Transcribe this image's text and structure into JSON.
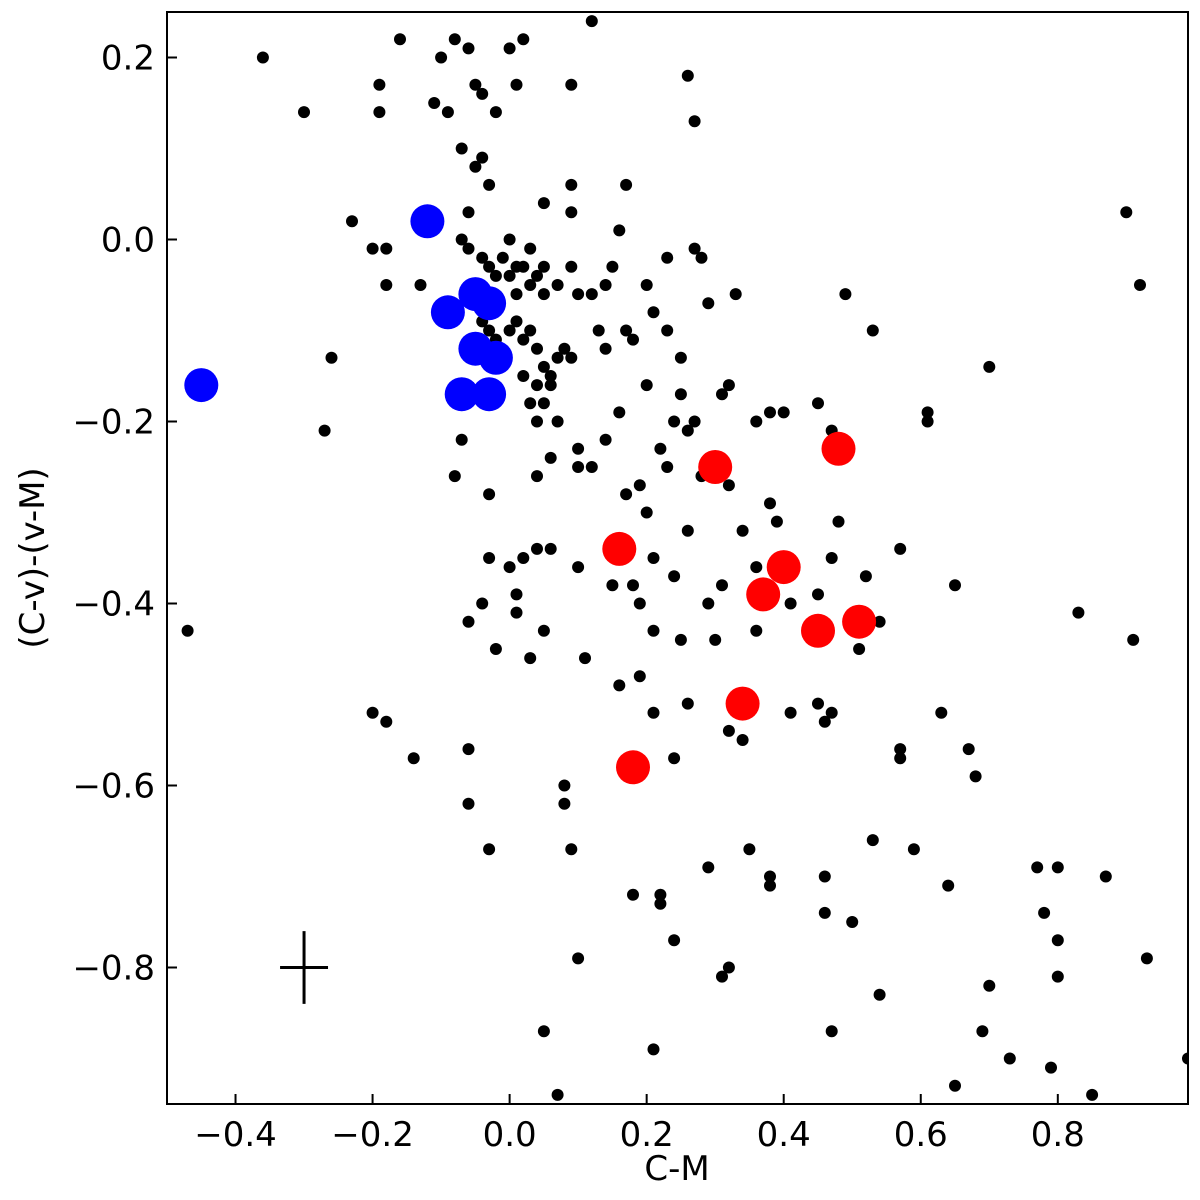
{
  "chart_data": {
    "type": "scatter",
    "title": "",
    "xlabel": "C-M",
    "ylabel": "(C-v)-(v-M)",
    "xlim": [
      -0.5,
      0.99
    ],
    "ylim": [
      -0.95,
      0.25
    ],
    "x_ticks": [
      -0.4,
      -0.2,
      0.0,
      0.2,
      0.4,
      0.6,
      0.8
    ],
    "x_tick_labels": [
      "−0.4",
      "−0.2",
      "0.0",
      "0.2",
      "0.4",
      "0.6",
      "0.8"
    ],
    "y_ticks": [
      0.2,
      0.0,
      -0.2,
      -0.4,
      -0.6,
      -0.8
    ],
    "y_tick_labels": [
      "0.2",
      "0.0",
      "−0.2",
      "−0.4",
      "−0.6",
      "−0.8"
    ],
    "grid": false,
    "legend": "none",
    "error_bar": {
      "x": -0.3,
      "y": -0.8,
      "xerr": 0.035,
      "yerr": 0.04,
      "color": "#000000"
    },
    "series": [
      {
        "color": "#000000",
        "marker": "small-circle",
        "points": [
          [
            -0.36,
            0.2
          ],
          [
            -0.3,
            0.14
          ],
          [
            -0.19,
            0.17
          ],
          [
            -0.19,
            0.14
          ],
          [
            -0.16,
            0.22
          ],
          [
            -0.1,
            0.2
          ],
          [
            -0.11,
            0.15
          ],
          [
            -0.09,
            0.14
          ],
          [
            -0.08,
            0.22
          ],
          [
            -0.06,
            0.21
          ],
          [
            -0.05,
            0.17
          ],
          [
            -0.04,
            0.16
          ],
          [
            -0.02,
            0.14
          ],
          [
            0.0,
            0.21
          ],
          [
            0.01,
            0.17
          ],
          [
            0.02,
            0.22
          ],
          [
            0.09,
            0.17
          ],
          [
            0.12,
            0.24
          ],
          [
            0.26,
            0.18
          ],
          [
            0.27,
            0.13
          ],
          [
            -0.07,
            0.1
          ],
          [
            -0.05,
            0.08
          ],
          [
            -0.04,
            0.09
          ],
          [
            -0.03,
            0.06
          ],
          [
            -0.06,
            0.03
          ],
          [
            0.05,
            0.04
          ],
          [
            0.09,
            0.06
          ],
          [
            0.09,
            0.03
          ],
          [
            0.16,
            0.01
          ],
          [
            0.17,
            0.06
          ],
          [
            -0.23,
            0.02
          ],
          [
            -0.2,
            -0.01
          ],
          [
            -0.18,
            -0.01
          ],
          [
            -0.18,
            -0.05
          ],
          [
            -0.13,
            -0.05
          ],
          [
            -0.07,
            0.0
          ],
          [
            -0.06,
            -0.01
          ],
          [
            -0.04,
            -0.02
          ],
          [
            -0.03,
            -0.03
          ],
          [
            -0.02,
            -0.04
          ],
          [
            -0.01,
            -0.02
          ],
          [
            0.0,
            0.0
          ],
          [
            0.0,
            -0.04
          ],
          [
            0.01,
            -0.03
          ],
          [
            0.01,
            -0.06
          ],
          [
            0.02,
            -0.03
          ],
          [
            0.03,
            -0.01
          ],
          [
            0.03,
            -0.05
          ],
          [
            0.04,
            -0.04
          ],
          [
            0.05,
            -0.03
          ],
          [
            0.05,
            -0.06
          ],
          [
            0.07,
            -0.05
          ],
          [
            0.09,
            -0.03
          ],
          [
            0.1,
            -0.06
          ],
          [
            0.12,
            -0.06
          ],
          [
            0.14,
            -0.05
          ],
          [
            0.15,
            -0.03
          ],
          [
            0.2,
            -0.05
          ],
          [
            0.23,
            -0.02
          ],
          [
            0.27,
            -0.01
          ],
          [
            0.28,
            -0.02
          ],
          [
            0.29,
            -0.07
          ],
          [
            0.33,
            -0.06
          ],
          [
            -0.04,
            -0.09
          ],
          [
            -0.03,
            -0.1
          ],
          [
            -0.02,
            -0.11
          ],
          [
            0.0,
            -0.1
          ],
          [
            0.01,
            -0.09
          ],
          [
            0.02,
            -0.11
          ],
          [
            0.03,
            -0.1
          ],
          [
            0.04,
            -0.12
          ],
          [
            0.05,
            -0.14
          ],
          [
            0.06,
            -0.15
          ],
          [
            0.07,
            -0.13
          ],
          [
            0.08,
            -0.12
          ],
          [
            0.09,
            -0.13
          ],
          [
            0.13,
            -0.1
          ],
          [
            0.14,
            -0.12
          ],
          [
            0.17,
            -0.1
          ],
          [
            0.18,
            -0.11
          ],
          [
            0.21,
            -0.08
          ],
          [
            0.23,
            -0.1
          ],
          [
            -0.26,
            -0.13
          ],
          [
            -0.27,
            -0.21
          ],
          [
            -0.47,
            -0.43
          ],
          [
            -0.08,
            -0.26
          ],
          [
            -0.07,
            -0.22
          ],
          [
            -0.03,
            -0.28
          ],
          [
            0.02,
            -0.15
          ],
          [
            0.03,
            -0.18
          ],
          [
            0.04,
            -0.16
          ],
          [
            0.04,
            -0.2
          ],
          [
            0.05,
            -0.18
          ],
          [
            0.06,
            -0.16
          ],
          [
            0.07,
            -0.2
          ],
          [
            0.06,
            -0.24
          ],
          [
            0.04,
            -0.26
          ],
          [
            0.1,
            -0.23
          ],
          [
            0.1,
            -0.25
          ],
          [
            0.12,
            -0.25
          ],
          [
            0.14,
            -0.22
          ],
          [
            0.16,
            -0.19
          ],
          [
            0.17,
            -0.28
          ],
          [
            0.19,
            -0.27
          ],
          [
            0.2,
            -0.3
          ],
          [
            0.2,
            -0.16
          ],
          [
            0.22,
            -0.23
          ],
          [
            0.23,
            -0.25
          ],
          [
            0.24,
            -0.2
          ],
          [
            0.25,
            -0.17
          ],
          [
            0.25,
            -0.13
          ],
          [
            0.26,
            -0.21
          ],
          [
            0.27,
            -0.2
          ],
          [
            0.28,
            -0.26
          ],
          [
            0.3,
            -0.24
          ],
          [
            0.31,
            -0.17
          ],
          [
            0.32,
            -0.16
          ],
          [
            0.32,
            -0.27
          ],
          [
            0.36,
            -0.2
          ],
          [
            0.38,
            -0.19
          ],
          [
            0.4,
            -0.19
          ],
          [
            0.45,
            -0.18
          ],
          [
            0.47,
            -0.21
          ],
          [
            0.49,
            -0.06
          ],
          [
            0.53,
            -0.1
          ],
          [
            0.61,
            -0.19
          ],
          [
            0.61,
            -0.2
          ],
          [
            0.7,
            -0.14
          ],
          [
            0.9,
            0.03
          ],
          [
            0.92,
            -0.05
          ],
          [
            -0.03,
            -0.35
          ],
          [
            -0.02,
            -0.45
          ],
          [
            -0.04,
            -0.4
          ],
          [
            -0.06,
            -0.42
          ],
          [
            0.0,
            -0.36
          ],
          [
            0.01,
            -0.39
          ],
          [
            0.01,
            -0.41
          ],
          [
            0.02,
            -0.35
          ],
          [
            0.03,
            -0.46
          ],
          [
            0.04,
            -0.34
          ],
          [
            0.05,
            -0.43
          ],
          [
            0.06,
            -0.34
          ],
          [
            0.1,
            -0.36
          ],
          [
            0.11,
            -0.46
          ],
          [
            0.15,
            -0.38
          ],
          [
            0.16,
            -0.49
          ],
          [
            0.18,
            -0.38
          ],
          [
            0.19,
            -0.4
          ],
          [
            0.19,
            -0.48
          ],
          [
            0.21,
            -0.43
          ],
          [
            0.21,
            -0.35
          ],
          [
            0.24,
            -0.37
          ],
          [
            0.25,
            -0.44
          ],
          [
            0.26,
            -0.32
          ],
          [
            0.29,
            -0.4
          ],
          [
            0.3,
            -0.44
          ],
          [
            0.31,
            -0.38
          ],
          [
            0.34,
            -0.32
          ],
          [
            0.36,
            -0.36
          ],
          [
            0.36,
            -0.43
          ],
          [
            0.38,
            -0.29
          ],
          [
            0.39,
            -0.31
          ],
          [
            0.41,
            -0.36
          ],
          [
            0.41,
            -0.4
          ],
          [
            0.45,
            -0.39
          ],
          [
            0.47,
            -0.35
          ],
          [
            0.48,
            -0.31
          ],
          [
            0.51,
            -0.45
          ],
          [
            0.52,
            -0.37
          ],
          [
            0.54,
            -0.42
          ],
          [
            0.57,
            -0.34
          ],
          [
            0.65,
            -0.38
          ],
          [
            -0.2,
            -0.52
          ],
          [
            -0.18,
            -0.53
          ],
          [
            -0.14,
            -0.57
          ],
          [
            -0.06,
            -0.56
          ],
          [
            -0.06,
            -0.62
          ],
          [
            -0.03,
            -0.67
          ],
          [
            0.08,
            -0.6
          ],
          [
            0.08,
            -0.62
          ],
          [
            0.09,
            -0.67
          ],
          [
            0.1,
            -0.79
          ],
          [
            0.18,
            -0.72
          ],
          [
            0.21,
            -0.52
          ],
          [
            0.22,
            -0.72
          ],
          [
            0.22,
            -0.73
          ],
          [
            0.24,
            -0.57
          ],
          [
            0.26,
            -0.51
          ],
          [
            0.29,
            -0.69
          ],
          [
            0.32,
            -0.54
          ],
          [
            0.34,
            -0.55
          ],
          [
            0.35,
            -0.67
          ],
          [
            0.38,
            -0.7
          ],
          [
            0.38,
            -0.71
          ],
          [
            0.41,
            -0.52
          ],
          [
            0.45,
            -0.51
          ],
          [
            0.46,
            -0.53
          ],
          [
            0.47,
            -0.52
          ],
          [
            0.46,
            -0.7
          ],
          [
            0.46,
            -0.74
          ],
          [
            0.5,
            -0.75
          ],
          [
            0.53,
            -0.66
          ],
          [
            0.57,
            -0.56
          ],
          [
            0.57,
            -0.57
          ],
          [
            0.59,
            -0.67
          ],
          [
            0.63,
            -0.52
          ],
          [
            0.64,
            -0.71
          ],
          [
            0.67,
            -0.56
          ],
          [
            0.68,
            -0.59
          ],
          [
            0.24,
            -0.77
          ],
          [
            0.32,
            -0.8
          ],
          [
            0.31,
            -0.81
          ],
          [
            0.47,
            -0.87
          ],
          [
            0.54,
            -0.83
          ],
          [
            0.05,
            -0.87
          ],
          [
            0.07,
            -0.94
          ],
          [
            0.21,
            -0.89
          ],
          [
            0.65,
            -0.93
          ],
          [
            0.69,
            -0.87
          ],
          [
            0.7,
            -0.82
          ],
          [
            0.73,
            -0.9
          ],
          [
            0.77,
            -0.69
          ],
          [
            0.78,
            -0.74
          ],
          [
            0.79,
            -0.91
          ],
          [
            0.8,
            -0.69
          ],
          [
            0.8,
            -0.77
          ],
          [
            0.8,
            -0.81
          ],
          [
            0.85,
            -0.94
          ],
          [
            0.87,
            -0.7
          ],
          [
            0.83,
            -0.41
          ],
          [
            0.91,
            -0.44
          ],
          [
            0.93,
            -0.79
          ],
          [
            0.99,
            -0.9
          ]
        ]
      },
      {
        "color": "#0000ff",
        "marker": "large-circle",
        "points": [
          [
            -0.12,
            0.02
          ],
          [
            -0.45,
            -0.16
          ],
          [
            -0.09,
            -0.08
          ],
          [
            -0.05,
            -0.06
          ],
          [
            -0.03,
            -0.07
          ],
          [
            -0.05,
            -0.12
          ],
          [
            -0.02,
            -0.13
          ],
          [
            -0.07,
            -0.17
          ],
          [
            -0.03,
            -0.17
          ]
        ]
      },
      {
        "color": "#ff0000",
        "marker": "large-circle",
        "points": [
          [
            0.3,
            -0.25
          ],
          [
            0.48,
            -0.23
          ],
          [
            0.16,
            -0.34
          ],
          [
            0.4,
            -0.36
          ],
          [
            0.37,
            -0.39
          ],
          [
            0.45,
            -0.43
          ],
          [
            0.51,
            -0.42
          ],
          [
            0.34,
            -0.51
          ],
          [
            0.18,
            -0.58
          ]
        ]
      }
    ]
  }
}
